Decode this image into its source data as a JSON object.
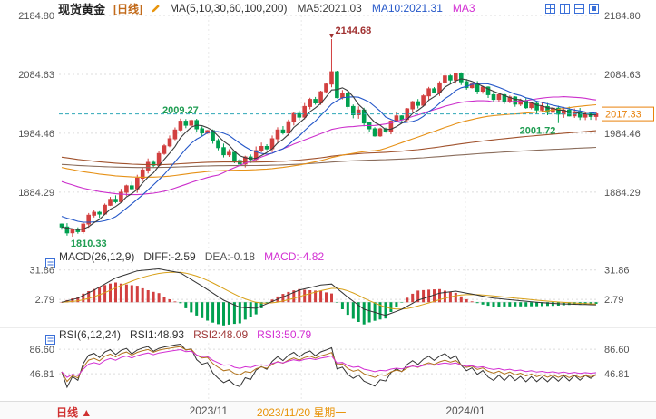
{
  "legend": {
    "symbol": "现货黄金",
    "period": "[日线]",
    "period_color": "#c26a1a",
    "items": [
      {
        "label": "MA(5,10,30,60,100,200)",
        "color": "#333333"
      },
      {
        "label": "MA5:2021.03",
        "color": "#3c3c3c"
      },
      {
        "label": "MA10:2021.31",
        "color": "#2356c8"
      },
      {
        "label": "MA3",
        "color": "#d32fd3"
      }
    ]
  },
  "toolbar": {
    "icons": [
      "layout-grid-icon",
      "layout-split-vertical-icon",
      "layout-split-horizontal-icon",
      "layout-single-icon"
    ],
    "color": "#3a6fd8"
  },
  "macd_legend": {
    "items": [
      {
        "label": "MACD(26,12,9)",
        "color": "#333333"
      },
      {
        "label": "DIFF:-2.59",
        "color": "#333333"
      },
      {
        "label": "DEA:-0.18",
        "color": "#555555"
      },
      {
        "label": "MACD:-4.82",
        "color": "#d32fd3"
      }
    ]
  },
  "rsi_legend": {
    "items": [
      {
        "label": "RSI(6,12,24)",
        "color": "#333333"
      },
      {
        "label": "RSI1:48.93",
        "color": "#333333"
      },
      {
        "label": "RSI2:48.09",
        "color": "#a03a3a"
      },
      {
        "label": "RSI3:50.79",
        "color": "#d32fd3"
      }
    ]
  },
  "bottom_bar": {
    "period": "日线",
    "arrow": "▲",
    "period_color": "#d03030"
  },
  "chart_data": {
    "type": "candlestick",
    "title": "现货黄金 [日线]",
    "panels": [
      "price+MA(5,10,30,60,100,200)",
      "MACD(26,12,9)",
      "RSI(6,12,24)"
    ],
    "main": {
      "ylim": [
        1790,
        2184.8
      ],
      "yticks": [
        2184.8,
        2084.63,
        1984.46,
        1884.29
      ],
      "first_open": 1830,
      "closes": [
        1825,
        1815,
        1820,
        1817,
        1830,
        1845,
        1850,
        1847,
        1862,
        1872,
        1868,
        1884,
        1895,
        1890,
        1908,
        1922,
        1935,
        1930,
        1950,
        1963,
        1975,
        1990,
        2005,
        1998,
        2006,
        1992,
        1985,
        1989,
        1972,
        1960,
        1948,
        1952,
        1938,
        1932,
        1944,
        1940,
        1955,
        1962,
        1958,
        1975,
        1990,
        1985,
        2004,
        2018,
        2012,
        2030,
        2042,
        2036,
        2055,
        2068,
        2089,
        2045,
        2052,
        2030,
        2016,
        2024,
        2002,
        1992,
        1980,
        1992,
        1988,
        2005,
        2014,
        2008,
        2026,
        2038,
        2032,
        2048,
        2060,
        2054,
        2070,
        2082,
        2075,
        2086,
        2072,
        2062,
        2068,
        2056,
        2063,
        2050,
        2042,
        2050,
        2038,
        2046,
        2034,
        2040,
        2028,
        2035,
        2024,
        2030,
        2020,
        2027,
        2017,
        2024,
        2014,
        2021,
        2012,
        2018,
        2013,
        2017.33
      ],
      "ma_periods": [
        5,
        10,
        30,
        60,
        100,
        200
      ],
      "ma_seeds": {
        "5": 1825,
        "10": 1845,
        "30": 1905,
        "60": 1928,
        "100": 1945,
        "200": 1932
      },
      "ma_colors": {
        "5": "#3c3c3c",
        "10": "#2356c8",
        "30": "#cc2fcc",
        "60": "#e69117",
        "100": "#a0522d",
        "200": "#8a6d5c"
      },
      "up_color": "#d24040",
      "down_color": "#00a050",
      "last_price": 2017.33,
      "last_price_color": "#e8820c",
      "last_price_line_color": "#2ea8b8",
      "annotations": [
        {
          "index": 1,
          "kind": "low",
          "value": 1810.33,
          "label": "1810.33",
          "color": "#1f9d52",
          "anchor": "start",
          "marker": false
        },
        {
          "index": 22,
          "kind": "high",
          "value": 2009.27,
          "label": "2009.27",
          "color": "#1f9d52",
          "anchor": "middle",
          "marker": false
        },
        {
          "index": 50,
          "kind": "high",
          "value": 2144.68,
          "label": "2144.68",
          "color": "#a03030",
          "anchor": "start",
          "marker": true
        },
        {
          "index": 92,
          "kind": "low",
          "value": 2001.72,
          "label": "2001.72",
          "color": "#1f9d52",
          "anchor": "end",
          "marker": false
        }
      ]
    },
    "macd": {
      "label": "MACD(26,12,9)",
      "diff": -2.59,
      "dea": -0.18,
      "macd": -4.82,
      "ylim": [
        -24,
        37
      ],
      "yticks": [
        31.86,
        2.79
      ],
      "diff_color": "#333333",
      "dea_color": "#d8a018",
      "hist_up": "#d24040",
      "hist_down": "#00a050",
      "diff_points": [
        [
          0,
          0
        ],
        [
          3,
          4
        ],
        [
          6,
          12
        ],
        [
          10,
          24
        ],
        [
          14,
          31
        ],
        [
          18,
          33
        ],
        [
          22,
          29
        ],
        [
          26,
          16
        ],
        [
          30,
          2
        ],
        [
          33,
          -5
        ],
        [
          36,
          -6
        ],
        [
          40,
          3
        ],
        [
          44,
          12
        ],
        [
          48,
          17
        ],
        [
          50,
          18
        ],
        [
          53,
          5
        ],
        [
          56,
          -7
        ],
        [
          60,
          -13
        ],
        [
          63,
          -7
        ],
        [
          66,
          2
        ],
        [
          70,
          9
        ],
        [
          73,
          11
        ],
        [
          76,
          8
        ],
        [
          80,
          4
        ],
        [
          84,
          2
        ],
        [
          88,
          0
        ],
        [
          92,
          -1.5
        ],
        [
          96,
          -2.2
        ],
        [
          99,
          -2.59
        ]
      ]
    },
    "rsi": {
      "label": "RSI(6,12,24)",
      "periods": [
        6,
        12,
        24
      ],
      "values": [
        48.93,
        48.09,
        50.79
      ],
      "ylim": [
        3,
        97
      ],
      "yticks": [
        86.6,
        46.81
      ],
      "colors": [
        "#333333",
        "#b0731d",
        "#d32fd3"
      ]
    },
    "xticks": [
      {
        "label": "2023/11",
        "pos": 0.277,
        "highlight": false
      },
      {
        "label": "2023/11/20 星期一",
        "pos": 0.449,
        "highlight": true
      },
      {
        "label": "2024/01",
        "pos": 0.753,
        "highlight": false
      }
    ],
    "xtick_color": "#555555",
    "xtick_highlight_color": "#e8940a"
  }
}
